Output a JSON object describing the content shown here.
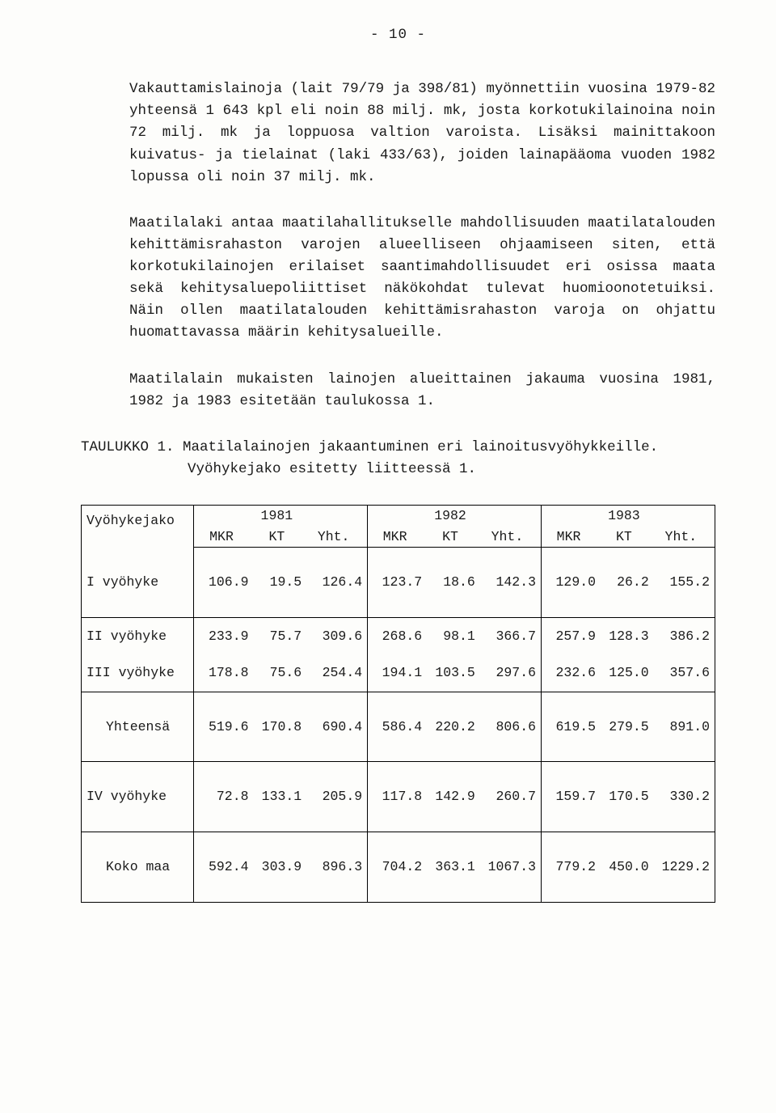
{
  "page_number": "- 10 -",
  "paragraphs": {
    "p1": "Vakauttamislainoja (lait 79/79 ja 398/81) myönnettiin vuosina 1979-82 yhteensä 1 643 kpl eli noin 88 milj. mk, josta korkotukilainoina noin 72 milj. mk ja loppuosa valtion varoista. Lisäksi mainittakoon kuivatus- ja tielainat (laki 433/63), joiden lainapääoma vuoden 1982 lopussa oli noin 37 milj. mk.",
    "p2": "Maatilalaki antaa maatilahallitukselle mahdollisuuden maatilatalouden kehittämisrahaston varojen alueelliseen ohjaamiseen siten, että korkotukilainojen erilaiset saantimahdollisuudet eri osissa maata sekä kehitysaluepoliittiset näkökohdat tulevat huomioonotetuiksi. Näin ollen maatilatalouden kehittämisrahaston varoja on ohjattu huomattavassa määrin kehitysalueille.",
    "p3": "Maatilalain mukaisten lainojen alueittainen jakauma vuosina 1981, 1982 ja 1983 esitetään taulukossa  1.",
    "p4a": "TAULUKKO 1. Maatilalainojen jakaantuminen eri lainoitusvyöhykkeille.",
    "p4b": "Vyöhykejako esitetty liitteessä 1."
  },
  "table": {
    "header": {
      "c0": "Vyöhykejako",
      "years": [
        "1981",
        "1982",
        "1983"
      ],
      "sub": [
        "MKR",
        "KT",
        "Yht."
      ]
    },
    "rows": [
      {
        "label": "I vyöhyke",
        "g1": [
          "106.9",
          "19.5",
          "126.4"
        ],
        "g2": [
          "123.7",
          "18.6",
          "142.3"
        ],
        "g3": [
          "129.0",
          "26.2",
          "155.2"
        ],
        "tall": true,
        "hr": true
      },
      {
        "label": "II vyöhyke",
        "g1": [
          "233.9",
          "75.7",
          "309.6"
        ],
        "g2": [
          "268.6",
          "98.1",
          "366.7"
        ],
        "g3": [
          "257.9",
          "128.3",
          "386.2"
        ],
        "tall": false,
        "hr": false
      },
      {
        "label": "III vyöhyke",
        "g1": [
          "178.8",
          "75.6",
          "254.4"
        ],
        "g2": [
          "194.1",
          "103.5",
          "297.6"
        ],
        "g3": [
          "232.6",
          "125.0",
          "357.6"
        ],
        "tall": false,
        "hr": true
      },
      {
        "label": "Yhteensä",
        "g1": [
          "519.6",
          "170.8",
          "690.4"
        ],
        "g2": [
          "586.4",
          "220.2",
          "806.6"
        ],
        "g3": [
          "619.5",
          "279.5",
          "891.0"
        ],
        "tall": true,
        "hr": true,
        "indent": true
      },
      {
        "label": "IV vyöhyke",
        "g1": [
          "72.8",
          "133.1",
          "205.9"
        ],
        "g2": [
          "117.8",
          "142.9",
          "260.7"
        ],
        "g3": [
          "159.7",
          "170.5",
          "330.2"
        ],
        "tall": true,
        "hr": true
      },
      {
        "label": "Koko maa",
        "g1": [
          "592.4",
          "303.9",
          "896.3"
        ],
        "g2": [
          "704.2",
          "363.1",
          "1067.3"
        ],
        "g3": [
          "779.2",
          "450.0",
          "1229.2"
        ],
        "tall": true,
        "hr": false,
        "indent": true
      }
    ]
  }
}
